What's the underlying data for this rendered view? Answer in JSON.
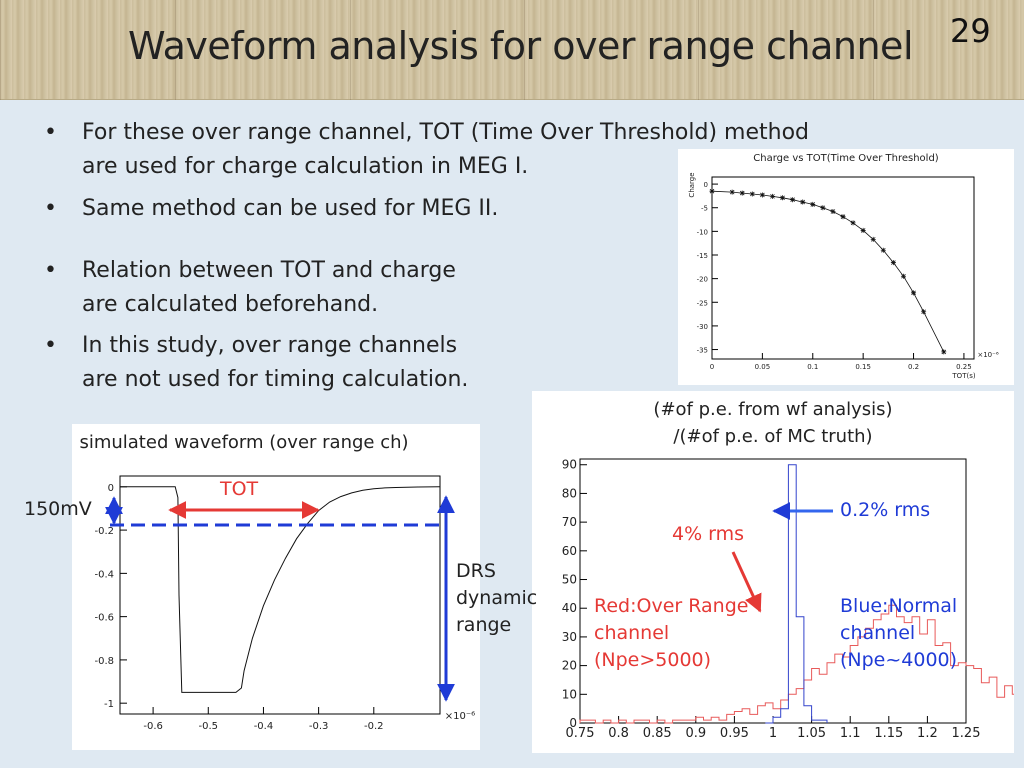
{
  "slide": {
    "title": "Waveform analysis for over range channel",
    "page_number": "29"
  },
  "bullets": [
    {
      "dot": "•",
      "lines": [
        "For these over range channel, TOT (Time Over Threshold) method",
        "are used for charge calculation in MEG I."
      ]
    },
    {
      "dot": "•",
      "lines": [
        "Same method can be used for MEG II."
      ]
    },
    {
      "dot": "•",
      "lines": [
        "Relation between TOT and charge",
        "are calculated beforehand."
      ]
    },
    {
      "dot": "•",
      "lines": [
        "In this study, over range channels",
        "are not used for timing calculation."
      ]
    }
  ],
  "captions": {
    "waveform": "simulated waveform (over range ch)",
    "ratio_line1": "(#of p.e. from wf analysis)",
    "ratio_line2": "/(#of p.e. of MC truth)"
  },
  "annotations": {
    "tot": "TOT",
    "threshold": "150mV",
    "drs": [
      "DRS",
      "dynamic",
      "range"
    ],
    "red_rms": "4% rms",
    "blue_rms": "0.2% rms",
    "red_label": [
      "Red:Over Range",
      "channel",
      "(Npe>5000)"
    ],
    "blue_label": [
      "Blue:Normal",
      "channel",
      "(Npe~4000)"
    ]
  },
  "colors": {
    "red": "#e53935",
    "blue": "#1f3bd6",
    "hist_red": "#e85a5a",
    "hist_blue": "#3344cc"
  },
  "chart_data": [
    {
      "id": "charge_vs_tot",
      "type": "scatter",
      "title": "Charge vs TOT(Time Over Threshold)",
      "xlabel": "TOT(s)",
      "ylabel": "Charge",
      "x_multiplier": "×10⁻⁶",
      "xlim": [
        0,
        0.26
      ],
      "ylim": [
        -37,
        1.5
      ],
      "xticks": [
        "0",
        "0.05",
        "0.1",
        "0.15",
        "0.2",
        "0.25"
      ],
      "yticks": [
        "0",
        "-5",
        "-10",
        "-15",
        "-20",
        "-25",
        "-30",
        "-35"
      ],
      "marker": "star",
      "x": [
        0.0,
        0.02,
        0.03,
        0.04,
        0.05,
        0.06,
        0.07,
        0.08,
        0.09,
        0.1,
        0.11,
        0.12,
        0.13,
        0.14,
        0.15,
        0.16,
        0.17,
        0.18,
        0.19,
        0.2,
        0.21,
        0.23
      ],
      "y": [
        -1.5,
        -1.7,
        -1.9,
        -2.1,
        -2.3,
        -2.6,
        -2.9,
        -3.3,
        -3.8,
        -4.3,
        -5.0,
        -5.8,
        -6.9,
        -8.2,
        -9.8,
        -11.7,
        -14.0,
        -16.6,
        -19.5,
        -23.0,
        -27.0,
        -35.5
      ]
    },
    {
      "id": "simulated_waveform",
      "type": "line",
      "title": "",
      "xlabel": "",
      "ylabel": "",
      "x_multiplier": "×10⁻⁶",
      "xlim": [
        -0.66,
        -0.08
      ],
      "ylim": [
        -1.05,
        0.05
      ],
      "xticks": [
        "-0.6",
        "-0.5",
        "-0.4",
        "-0.3",
        "-0.2"
      ],
      "yticks": [
        "0",
        "-0.2",
        "-0.4",
        "-0.6",
        "-0.8",
        "-1"
      ],
      "threshold": -0.15,
      "tot_range": [
        -0.55,
        -0.31
      ],
      "x": [
        -0.66,
        -0.58,
        -0.56,
        -0.555,
        -0.553,
        -0.548,
        -0.45,
        -0.44,
        -0.435,
        -0.42,
        -0.4,
        -0.38,
        -0.36,
        -0.34,
        -0.32,
        -0.3,
        -0.28,
        -0.26,
        -0.24,
        -0.22,
        -0.2,
        -0.18,
        -0.16,
        -0.14,
        -0.12,
        -0.1,
        -0.08
      ],
      "y": [
        0.0,
        0.0,
        0.0,
        -0.05,
        -0.5,
        -0.95,
        -0.95,
        -0.93,
        -0.85,
        -0.7,
        -0.55,
        -0.43,
        -0.33,
        -0.24,
        -0.17,
        -0.11,
        -0.07,
        -0.045,
        -0.028,
        -0.016,
        -0.009,
        -0.005,
        -0.003,
        -0.002,
        -0.001,
        -0.0005,
        0.0
      ]
    },
    {
      "id": "npe_ratio_histogram",
      "type": "bar",
      "title": "",
      "xlabel": "",
      "ylabel": "",
      "xlim": [
        0.75,
        1.25
      ],
      "ylim": [
        0,
        92
      ],
      "xticks": [
        "0.75",
        "0.8",
        "0.85",
        "0.9",
        "0.95",
        "1",
        "1.05",
        "1.1",
        "1.15",
        "1.2",
        "1.25"
      ],
      "yticks": [
        "0",
        "10",
        "20",
        "30",
        "40",
        "50",
        "60",
        "70",
        "80",
        "90"
      ],
      "bin_width": 0.01,
      "series": [
        {
          "name": "Red:Over Range channel (Npe>5000)",
          "bin_start": 0.75,
          "values": [
            1,
            1,
            0,
            1,
            0,
            1,
            0,
            1,
            1,
            0,
            1,
            0,
            1,
            1,
            1,
            2,
            1,
            2,
            1,
            3,
            4,
            5,
            3,
            6,
            7,
            5,
            8,
            10,
            12,
            15,
            19,
            17,
            21,
            24,
            23,
            27,
            30,
            33,
            36,
            38,
            41,
            37,
            35,
            37,
            31,
            36,
            27,
            28,
            20,
            21,
            20,
            19,
            14,
            16,
            9,
            13,
            10,
            9,
            7,
            6,
            4,
            5,
            3,
            4,
            4,
            2,
            2,
            3,
            2,
            1,
            2,
            1,
            1,
            1,
            0,
            1,
            0,
            1,
            1,
            0,
            1,
            1,
            0,
            1,
            0,
            1,
            0,
            1,
            0,
            1,
            0,
            1,
            0,
            0,
            1,
            0,
            0,
            1,
            0,
            0
          ]
        },
        {
          "name": "Blue:Normal channel (Npe~4000)",
          "bin_start": 0.99,
          "values": [
            0,
            2,
            5,
            90,
            37,
            6,
            1,
            1
          ]
        }
      ]
    }
  ]
}
